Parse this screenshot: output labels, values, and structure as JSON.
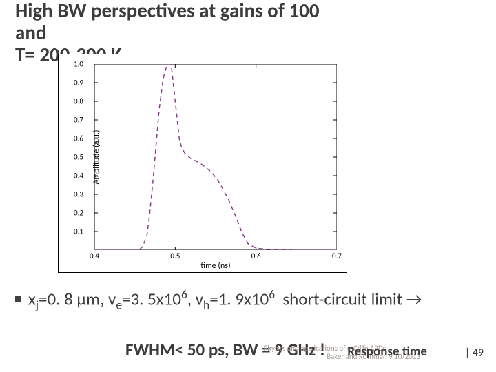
{
  "title_line1": "High BW perspectives at gains of 100",
  "title_line2": "and",
  "title_line3": "T= 200-300 K",
  "chart": {
    "type": "line",
    "xlabel": "time (ns)",
    "ylabel": "Amplitude (a.u.)",
    "xlim": [
      0.4,
      0.7
    ],
    "ylim": [
      0,
      1.0
    ],
    "xticks": [
      0.4,
      0.5,
      0.6,
      0.7
    ],
    "xtick_labels": [
      "0.4",
      "0.5",
      "0.6",
      "0.7"
    ],
    "yticks": [
      0.1,
      0.2,
      0.3,
      0.4,
      0.5,
      0.6,
      0.7,
      0.8,
      0.9,
      1.0
    ],
    "ytick_labels": [
      "0.1",
      "0.2",
      "0.3",
      "0.4",
      "0.5",
      "0.6",
      "0.7",
      "0.8",
      "0.9",
      "1.0"
    ],
    "series": [
      {
        "color": "#8b3a8b",
        "linewidth": 1.5,
        "dash": "6,5",
        "data": [
          [
            0.4,
            0.0
          ],
          [
            0.455,
            0.0
          ],
          [
            0.46,
            0.02
          ],
          [
            0.465,
            0.08
          ],
          [
            0.468,
            0.18
          ],
          [
            0.472,
            0.35
          ],
          [
            0.476,
            0.55
          ],
          [
            0.48,
            0.75
          ],
          [
            0.485,
            0.92
          ],
          [
            0.49,
            1.0
          ],
          [
            0.495,
            1.0
          ],
          [
            0.5,
            0.8
          ],
          [
            0.505,
            0.6
          ],
          [
            0.508,
            0.55
          ],
          [
            0.512,
            0.52
          ],
          [
            0.52,
            0.49
          ],
          [
            0.53,
            0.47
          ],
          [
            0.545,
            0.42
          ],
          [
            0.555,
            0.36
          ],
          [
            0.565,
            0.28
          ],
          [
            0.575,
            0.18
          ],
          [
            0.582,
            0.1
          ],
          [
            0.59,
            0.035
          ],
          [
            0.6,
            0.01
          ],
          [
            0.62,
            0.003
          ],
          [
            0.65,
            0.0
          ],
          [
            0.7,
            0.0
          ]
        ]
      }
    ],
    "tick_color": "#000000",
    "line_color_axis": "#000000",
    "background_color": "#ffffff",
    "label_fontsize": 12,
    "tick_fontsize": 11
  },
  "bullet_text_html": "x<sub>j</sub>=0. 8 µm, v<sub>e</sub>=3. 5x10<sup>6</sup>, v<sub>h</sub>=1. 9x10<sup>6</sup>&nbsp;&nbsp;short-circuit limit →",
  "conclusion_text": "FWHM< 50 ps, BW = 9 GHz !",
  "footer1": "Physics and applications of e-CdTe APDs",
  "footer2": "Baker and Rothman 9 10/2013",
  "response_time": "Response time",
  "slide_num": "| 49",
  "colors": {
    "text": "#3c3c3c",
    "footer": "#a09890",
    "bullet": "#404040"
  }
}
